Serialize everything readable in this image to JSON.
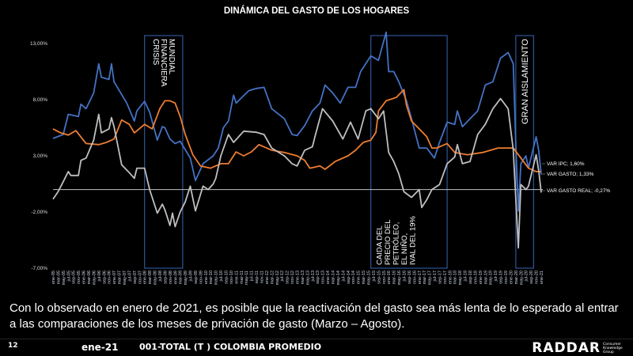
{
  "title": "DINÁMICA DEL GASTO DE LOS HOGARES",
  "caption": "Con lo observado en enero de 2021, es posible que la reactivación del gasto sea más lenta de lo esperado al entrar a las comparaciones de los meses de privación de gasto (Marzo – Agosto).",
  "footer": {
    "page_number": "12",
    "period": "ene-21",
    "market": "001-TOTAL (T ) COLOMBIA PROMEDIO",
    "logo_text": "RADDAR",
    "logo_subtext": "Consumer Knowledge Group"
  },
  "chart_data": {
    "type": "line",
    "title": "DINÁMICA DEL GASTO DE LOS HOGARES",
    "ylim": [
      -7,
      13
    ],
    "y_ticks": [
      "13,00%",
      "8,00%",
      "3,00%",
      "-2,00%",
      "-7,00%"
    ],
    "y_tick_values": [
      13,
      8,
      3,
      -2,
      -7
    ],
    "zero_line": true,
    "grid": false,
    "x_range": [
      "ene-05",
      "ene-21"
    ],
    "x_tick_labels": [
      "ene-05",
      "mar-05",
      "may-05",
      "jul-05",
      "sep-05",
      "nov-05",
      "ene-06",
      "mar-06",
      "may-06",
      "jul-06",
      "sep-06",
      "nov-06",
      "ene-07",
      "mar-07",
      "may-07",
      "jul-07",
      "sep-07",
      "nov-07",
      "ene-08",
      "mar-08",
      "may-08",
      "jul-08",
      "sep-08",
      "nov-08",
      "ene-09",
      "mar-09",
      "may-09",
      "jul-09",
      "sep-09",
      "nov-09",
      "ene-10",
      "mar-10",
      "may-10",
      "jul-10",
      "sep-10",
      "nov-10",
      "ene-11",
      "mar-11",
      "may-11",
      "jul-11",
      "sep-11",
      "nov-11",
      "ene-12",
      "mar-12",
      "may-12",
      "jul-12",
      "sep-12",
      "nov-12",
      "ene-13",
      "mar-13",
      "may-13",
      "jul-13",
      "sep-13",
      "nov-13",
      "ene-14",
      "mar-14",
      "may-14",
      "jul-14",
      "sep-14",
      "nov-14",
      "ene-15",
      "mar-15",
      "may-15",
      "jul-15",
      "sep-15",
      "nov-15",
      "ene-16",
      "mar-16",
      "may-16",
      "jul-16",
      "sep-16",
      "nov-16",
      "ene-17",
      "mar-17",
      "may-17",
      "jul-17",
      "sep-17",
      "nov-17",
      "ene-18",
      "mar-18",
      "may-18",
      "jul-18",
      "sep-18",
      "nov-18",
      "ene-19",
      "mar-19",
      "may-19",
      "jul-19",
      "sep-19",
      "nov-19",
      "ene-20",
      "mar-20",
      "may-20",
      "jul-20",
      "sep-20",
      "nov-20",
      "ene-21"
    ],
    "series": [
      {
        "name": "VAR GASTO",
        "end_label": "VAR GASTO; 1,33%",
        "color": "#4472C4",
        "points": [
          [
            "ene-05",
            4.55
          ],
          [
            "may-05",
            4.9
          ],
          [
            "jul-05",
            6.7
          ],
          [
            "nov-05",
            6.5
          ],
          [
            "dic-05",
            7.6
          ],
          [
            "feb-06",
            7.2
          ],
          [
            "may-06",
            8.6
          ],
          [
            "jul-06",
            11.2
          ],
          [
            "ago-06",
            10
          ],
          [
            "nov-06",
            9.8
          ],
          [
            "dic-06",
            11.2
          ],
          [
            "ene-07",
            9.6
          ],
          [
            "jun-07",
            7.7
          ],
          [
            "sep-07",
            6.1
          ],
          [
            "oct-07",
            7
          ],
          [
            "ene-08",
            7.85
          ],
          [
            "mar-08",
            6.9
          ],
          [
            "jun-08",
            4.4
          ],
          [
            "ago-08",
            5.6
          ],
          [
            "sep-08",
            5.5
          ],
          [
            "nov-08",
            4.5
          ],
          [
            "ene-09",
            4.1
          ],
          [
            "mar-09",
            4.3
          ],
          [
            "jul-09",
            2.8
          ],
          [
            "sep-09",
            0.8
          ],
          [
            "dic-09",
            2.3
          ],
          [
            "abr-10",
            3
          ],
          [
            "jun-10",
            3.7
          ],
          [
            "ago-10",
            5.5
          ],
          [
            "oct-10",
            6.1
          ],
          [
            "dic-10",
            8.4
          ],
          [
            "ene-11",
            7.7
          ],
          [
            "jun-11",
            8.8
          ],
          [
            "sep-11",
            9
          ],
          [
            "dic-11",
            9.1
          ],
          [
            "mar-12",
            7.2
          ],
          [
            "ago-12",
            6.3
          ],
          [
            "nov-12",
            4.9
          ],
          [
            "ene-13",
            4.8
          ],
          [
            "abr-13",
            5.7
          ],
          [
            "jul-13",
            7
          ],
          [
            "oct-13",
            7.7
          ],
          [
            "dic-13",
            9.3
          ],
          [
            "mar-14",
            8.6
          ],
          [
            "jun-14",
            7.7
          ],
          [
            "sep-14",
            9.1
          ],
          [
            "dic-14",
            9.1
          ],
          [
            "feb-15",
            10.5
          ],
          [
            "jun-15",
            11.9
          ],
          [
            "sep-15",
            11.5
          ],
          [
            "dic-15",
            14
          ],
          [
            "ene-16",
            10.5
          ],
          [
            "mar-16",
            10.5
          ],
          [
            "may-16",
            9.6
          ],
          [
            "ago-16",
            7.9
          ],
          [
            "oct-16",
            6.3
          ],
          [
            "ene-17",
            3.7
          ],
          [
            "abr-17",
            3.7
          ],
          [
            "jul-17",
            2.8
          ],
          [
            "sep-17",
            4.2
          ],
          [
            "dic-17",
            6
          ],
          [
            "mar-18",
            5.8
          ],
          [
            "abr-18",
            7
          ],
          [
            "jun-18",
            5.6
          ],
          [
            "sep-18",
            6.3
          ],
          [
            "dic-18",
            7
          ],
          [
            "mar-19",
            9.3
          ],
          [
            "jun-19",
            9.6
          ],
          [
            "sep-19",
            11.7
          ],
          [
            "dic-19",
            12.2
          ],
          [
            "feb-20",
            11.2
          ],
          [
            "mar-20",
            4
          ],
          [
            "abr-20",
            -1.9
          ],
          [
            "may-20",
            2.3
          ],
          [
            "jul-20",
            3
          ],
          [
            "ago-20",
            1.9
          ],
          [
            "nov-20",
            4.7
          ],
          [
            "dic-20",
            3.5
          ],
          [
            "ene-21",
            1.33
          ]
        ]
      },
      {
        "name": "VAR IPC",
        "end_label": "VAR IPC; 1,60%",
        "color": "#ED7D31",
        "points": [
          [
            "ene-05",
            5.4
          ],
          [
            "abr-05",
            5.05
          ],
          [
            "jul-05",
            4.85
          ],
          [
            "oct-05",
            5.25
          ],
          [
            "feb-06",
            4.1
          ],
          [
            "jul-06",
            4.0
          ],
          [
            "oct-06",
            4.2
          ],
          [
            "ene-07",
            4.5
          ],
          [
            "abr-07",
            6.2
          ],
          [
            "jul-07",
            5.8
          ],
          [
            "sep-07",
            5.05
          ],
          [
            "ene-08",
            5.8
          ],
          [
            "abr-08",
            5.4
          ],
          [
            "jul-08",
            7.2
          ],
          [
            "sep-08",
            7.9
          ],
          [
            "nov-08",
            7.9
          ],
          [
            "ene-09",
            7.7
          ],
          [
            "mar-09",
            6.5
          ],
          [
            "may-09",
            4.9
          ],
          [
            "ago-09",
            3.1
          ],
          [
            "nov-09",
            2.1
          ],
          [
            "mar-10",
            1.9
          ],
          [
            "jul-10",
            2.3
          ],
          [
            "oct-10",
            2.3
          ],
          [
            "ene-11",
            3.35
          ],
          [
            "abr-11",
            3.0
          ],
          [
            "jul-11",
            3.35
          ],
          [
            "oct-11",
            4.0
          ],
          [
            "mar-12",
            3.5
          ],
          [
            "ago-12",
            3.3
          ],
          [
            "ene-13",
            3.0
          ],
          [
            "abr-13",
            2.6
          ],
          [
            "jun-13",
            1.9
          ],
          [
            "oct-13",
            2.1
          ],
          [
            "dic-13",
            1.8
          ],
          [
            "abr-14",
            2.5
          ],
          [
            "sep-14",
            3.0
          ],
          [
            "dic-14",
            3.5
          ],
          [
            "mar-15",
            4.2
          ],
          [
            "jun-15",
            4.4
          ],
          [
            "ago-15",
            5.1
          ],
          [
            "sep-15",
            7.0
          ],
          [
            "dic-15",
            7.9
          ],
          [
            "abr-16",
            8.2
          ],
          [
            "jul-16",
            8.9
          ],
          [
            "ago-16",
            7.5
          ],
          [
            "oct-16",
            6.1
          ],
          [
            "ene-17",
            5.4
          ],
          [
            "abr-17",
            4.7
          ],
          [
            "jun-17",
            3.7
          ],
          [
            "ago-17",
            3.7
          ],
          [
            "dic-17",
            4.1
          ],
          [
            "mar-18",
            3.3
          ],
          [
            "ago-18",
            3.1
          ],
          [
            "feb-19",
            3.3
          ],
          [
            "ago-19",
            3.7
          ],
          [
            "feb-20",
            3.7
          ],
          [
            "may-20",
            2.8
          ],
          [
            "ago-20",
            1.9
          ],
          [
            "nov-20",
            1.6
          ],
          [
            "ene-21",
            1.6
          ]
        ]
      },
      {
        "name": "VAR GASTO REAL",
        "end_label": "VAR GASTO REAL; -0,27%",
        "color": "#BFBFBF",
        "points": [
          [
            "ene-05",
            -0.85
          ],
          [
            "mar-05",
            -0.2
          ],
          [
            "may-05",
            0.7
          ],
          [
            "jul-05",
            1.6
          ],
          [
            "ago-05",
            1.25
          ],
          [
            "nov-05",
            1.25
          ],
          [
            "dic-05",
            2.6
          ],
          [
            "feb-06",
            2.8
          ],
          [
            "may-06",
            4.4
          ],
          [
            "jul-06",
            6.7
          ],
          [
            "ago-06",
            5.05
          ],
          [
            "nov-06",
            5.4
          ],
          [
            "dic-06",
            6.4
          ],
          [
            "ene-07",
            5.6
          ],
          [
            "abr-07",
            2.2
          ],
          [
            "jul-07",
            1.5
          ],
          [
            "sep-07",
            1.0
          ],
          [
            "oct-07",
            1.9
          ],
          [
            "ene-08",
            1.9
          ],
          [
            "mar-08",
            0
          ],
          [
            "jun-08",
            -2.1
          ],
          [
            "ago-08",
            -1.3
          ],
          [
            "sep-08",
            -1.8
          ],
          [
            "nov-08",
            -3.2
          ],
          [
            "dic-08",
            -2.1
          ],
          [
            "ene-09",
            -3.3
          ],
          [
            "mar-09",
            -2
          ],
          [
            "may-09",
            -1.1
          ],
          [
            "jul-09",
            0.3
          ],
          [
            "sep-09",
            -1.9
          ],
          [
            "dic-09",
            0.3
          ],
          [
            "feb-10",
            0
          ],
          [
            "abr-10",
            0.5
          ],
          [
            "may-10",
            1
          ],
          [
            "jul-10",
            3
          ],
          [
            "oct-10",
            4.9
          ],
          [
            "dic-10",
            4.2
          ],
          [
            "abr-11",
            5.2
          ],
          [
            "sep-11",
            5.1
          ],
          [
            "dic-11",
            4.9
          ],
          [
            "mar-12",
            3.7
          ],
          [
            "ago-12",
            3
          ],
          [
            "nov-12",
            2.3
          ],
          [
            "ene-13",
            2.1
          ],
          [
            "abr-13",
            3.5
          ],
          [
            "jul-13",
            3.8
          ],
          [
            "ago-13",
            4.7
          ],
          [
            "nov-13",
            7.2
          ],
          [
            "mar-14",
            6.1
          ],
          [
            "jul-14",
            4.5
          ],
          [
            "oct-14",
            6
          ],
          [
            "ene-15",
            4.5
          ],
          [
            "abr-15",
            7
          ],
          [
            "jun-15",
            7.2
          ],
          [
            "sep-15",
            6.3
          ],
          [
            "nov-15",
            7
          ],
          [
            "ene-16",
            3.3
          ],
          [
            "mar-16",
            2.5
          ],
          [
            "may-16",
            1.4
          ],
          [
            "jul-16",
            -0.2
          ],
          [
            "oct-16",
            -0.7
          ],
          [
            "ene-17",
            0
          ],
          [
            "feb-17",
            -1.6
          ],
          [
            "abr-17",
            -0.9
          ],
          [
            "jun-17",
            0
          ],
          [
            "sep-17",
            0.45
          ],
          [
            "dic-17",
            2.3
          ],
          [
            "mar-18",
            2.9
          ],
          [
            "abr-18",
            4
          ],
          [
            "jun-18",
            2.3
          ],
          [
            "sep-18",
            2.5
          ],
          [
            "dic-18",
            4.9
          ],
          [
            "mar-19",
            5.8
          ],
          [
            "jun-19",
            7.2
          ],
          [
            "sep-19",
            8.1
          ],
          [
            "dic-19",
            7.2
          ],
          [
            "feb-20",
            3.5
          ],
          [
            "abr-20",
            -5.2
          ],
          [
            "may-20",
            0.45
          ],
          [
            "jul-20",
            0
          ],
          [
            "ago-20",
            0.3
          ],
          [
            "nov-20",
            3.1
          ],
          [
            "dic-20",
            1.7
          ],
          [
            "ene-21",
            -0.27
          ]
        ]
      }
    ],
    "annotations": [
      {
        "label_lines": [
          "CRISIS",
          "FINANCIERA",
          "MUNDIAL"
        ],
        "from": "ene-08",
        "to": "abr-09",
        "text_position": "top"
      },
      {
        "label_lines": [
          "CAIDA DEL",
          "PRECIO DEL",
          "PETRÓLEO,",
          "EL NIÑO,",
          "IVAL DEL 19%"
        ],
        "from": "jun-15",
        "to": "dic-17",
        "text_position": "bottom"
      },
      {
        "label_lines": [
          "GRAN AISLAMIENTO"
        ],
        "from": "mar-20",
        "to": "oct-20",
        "text_position": "top"
      }
    ],
    "annotation_box_color": "#2F5597"
  }
}
